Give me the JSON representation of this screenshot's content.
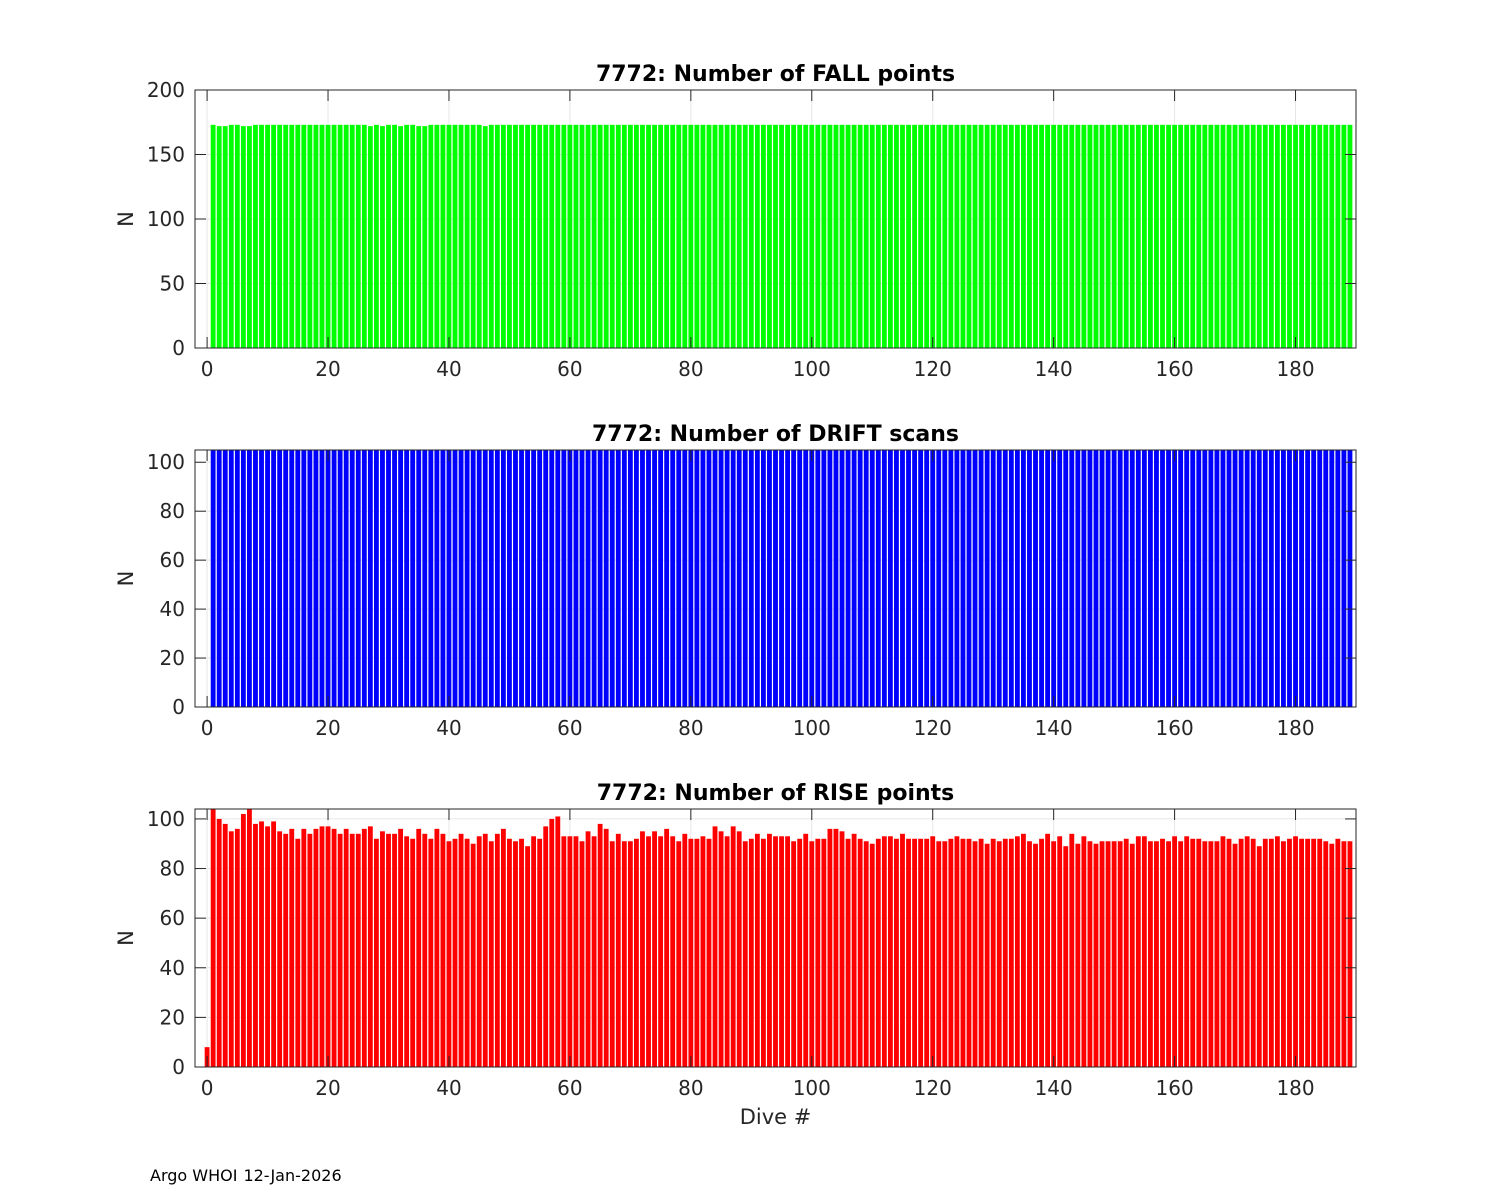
{
  "figure": {
    "footer_org": "Argo WHOI",
    "footer_date": "12-Jan-2026"
  },
  "chart_data": [
    {
      "type": "bar",
      "title": "7772: Number of FALL points",
      "xlabel": "",
      "ylabel": "N",
      "xlim": [
        -2,
        190
      ],
      "ylim": [
        0,
        200
      ],
      "xticks": [
        0,
        20,
        40,
        60,
        80,
        100,
        120,
        140,
        160,
        180
      ],
      "yticks": [
        0,
        50,
        100,
        150,
        200
      ],
      "color": "#00ff00",
      "x_start": 1,
      "x_end": 189,
      "default_value": 173,
      "overrides": {
        "2": 172,
        "3": 172,
        "6": 172,
        "7": 172,
        "27": 172,
        "29": 172,
        "32": 172,
        "35": 172,
        "36": 172,
        "46": 172
      }
    },
    {
      "type": "bar",
      "title": "7772: Number of DRIFT scans",
      "xlabel": "",
      "ylabel": "N",
      "xlim": [
        -2,
        190
      ],
      "ylim": [
        0,
        105
      ],
      "xticks": [
        0,
        20,
        40,
        60,
        80,
        100,
        120,
        140,
        160,
        180
      ],
      "yticks": [
        0,
        20,
        40,
        60,
        80,
        100
      ],
      "color": "#0000ff",
      "x_start": 1,
      "x_end": 189,
      "default_value": 105,
      "overrides": {}
    },
    {
      "type": "bar",
      "title": "7772: Number of RISE points",
      "xlabel": "Dive #",
      "ylabel": "N",
      "xlim": [
        -2,
        190
      ],
      "ylim": [
        0,
        104
      ],
      "xticks": [
        0,
        20,
        40,
        60,
        80,
        100,
        120,
        140,
        160,
        180
      ],
      "yticks": [
        0,
        20,
        40,
        60,
        80,
        100
      ],
      "color": "#ff0000",
      "x_start": 0,
      "x_end": 189,
      "values": [
        8,
        104,
        100,
        98,
        95,
        96,
        102,
        104,
        98,
        99,
        97,
        99,
        95,
        94,
        96,
        92,
        96,
        94,
        96,
        97,
        97,
        96,
        94,
        96,
        94,
        94,
        96,
        97,
        92,
        95,
        94,
        94,
        96,
        93,
        92,
        96,
        94,
        92,
        96,
        94,
        91,
        92,
        94,
        92,
        90,
        93,
        94,
        91,
        94,
        96,
        92,
        91,
        92,
        89,
        93,
        92,
        97,
        100,
        101,
        93,
        93,
        93,
        91,
        95,
        93,
        98,
        96,
        91,
        94,
        91,
        91,
        92,
        95,
        93,
        95,
        93,
        96,
        93,
        91,
        94,
        92,
        92,
        93,
        92,
        97,
        95,
        93,
        97,
        95,
        91,
        92,
        94,
        92,
        94,
        93,
        93,
        93,
        91,
        92,
        94,
        91,
        92,
        92,
        96,
        96,
        95,
        92,
        94,
        92,
        91,
        90,
        92,
        93,
        93,
        92,
        94,
        92,
        92,
        92,
        92,
        93,
        91,
        91,
        92,
        93,
        92,
        92,
        91,
        92,
        90,
        92,
        91,
        92,
        92,
        93,
        94,
        91,
        90,
        92,
        94,
        91,
        93,
        89,
        94,
        90,
        93,
        91,
        90,
        91,
        91,
        91,
        91,
        92,
        90,
        93,
        93,
        91,
        91,
        92,
        91,
        93,
        91,
        93,
        92,
        92,
        91,
        91,
        91,
        93,
        92,
        90,
        92,
        93,
        92,
        89,
        92,
        92,
        93,
        91,
        92,
        93,
        92,
        92,
        92,
        92,
        91,
        90,
        92,
        91,
        91
      ]
    }
  ]
}
